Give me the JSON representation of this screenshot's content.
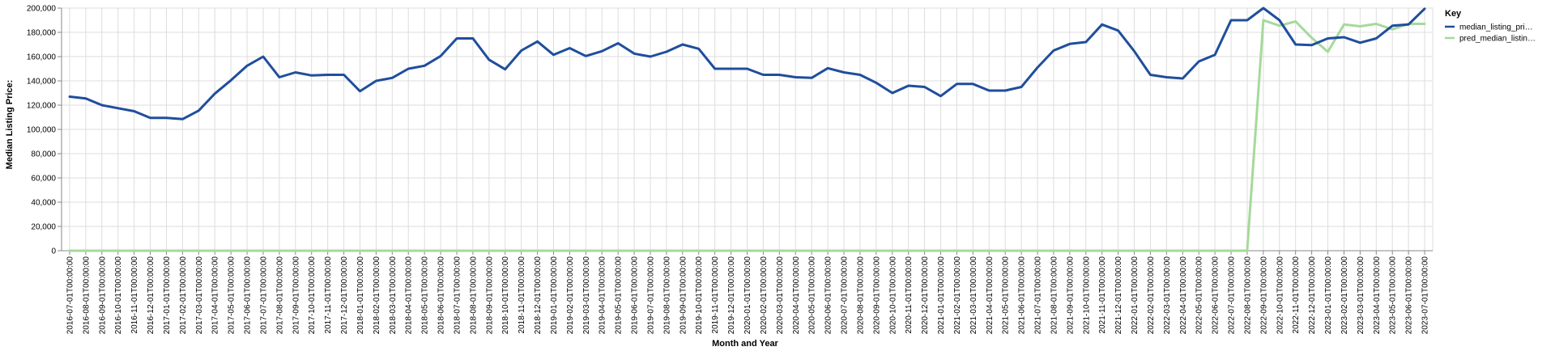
{
  "chart_data": {
    "type": "line",
    "xlabel": "Month and Year",
    "ylabel": "Median Listing Price:",
    "ylim": [
      0,
      200000
    ],
    "yticks": [
      0,
      20000,
      40000,
      60000,
      80000,
      100000,
      120000,
      140000,
      160000,
      180000,
      200000
    ],
    "ytick_labels": [
      "0",
      "20,000",
      "40,000",
      "60,000",
      "80,000",
      "100,000",
      "120,000",
      "140,000",
      "160,000",
      "180,000",
      "200,000"
    ],
    "grid": true,
    "legend": {
      "title": "Key",
      "placement": "top-right"
    },
    "categories": [
      "2016-07-01T00:00:00",
      "2016-08-01T00:00:00",
      "2016-09-01T00:00:00",
      "2016-10-01T00:00:00",
      "2016-11-01T00:00:00",
      "2016-12-01T00:00:00",
      "2017-01-01T00:00:00",
      "2017-02-01T00:00:00",
      "2017-03-01T00:00:00",
      "2017-04-01T00:00:00",
      "2017-05-01T00:00:00",
      "2017-06-01T00:00:00",
      "2017-07-01T00:00:00",
      "2017-08-01T00:00:00",
      "2017-09-01T00:00:00",
      "2017-10-01T00:00:00",
      "2017-11-01T00:00:00",
      "2017-12-01T00:00:00",
      "2018-01-01T00:00:00",
      "2018-02-01T00:00:00",
      "2018-03-01T00:00:00",
      "2018-04-01T00:00:00",
      "2018-05-01T00:00:00",
      "2018-06-01T00:00:00",
      "2018-07-01T00:00:00",
      "2018-08-01T00:00:00",
      "2018-09-01T00:00:00",
      "2018-10-01T00:00:00",
      "2018-11-01T00:00:00",
      "2018-12-01T00:00:00",
      "2019-01-01T00:00:00",
      "2019-02-01T00:00:00",
      "2019-03-01T00:00:00",
      "2019-04-01T00:00:00",
      "2019-05-01T00:00:00",
      "2019-06-01T00:00:00",
      "2019-07-01T00:00:00",
      "2019-08-01T00:00:00",
      "2019-09-01T00:00:00",
      "2019-10-01T00:00:00",
      "2019-11-01T00:00:00",
      "2019-12-01T00:00:00",
      "2020-01-01T00:00:00",
      "2020-02-01T00:00:00",
      "2020-03-01T00:00:00",
      "2020-04-01T00:00:00",
      "2020-05-01T00:00:00",
      "2020-06-01T00:00:00",
      "2020-07-01T00:00:00",
      "2020-08-01T00:00:00",
      "2020-09-01T00:00:00",
      "2020-10-01T00:00:00",
      "2020-11-01T00:00:00",
      "2020-12-01T00:00:00",
      "2021-01-01T00:00:00",
      "2021-02-01T00:00:00",
      "2021-03-01T00:00:00",
      "2021-04-01T00:00:00",
      "2021-05-01T00:00:00",
      "2021-06-01T00:00:00",
      "2021-07-01T00:00:00",
      "2021-08-01T00:00:00",
      "2021-09-01T00:00:00",
      "2021-10-01T00:00:00",
      "2021-11-01T00:00:00",
      "2021-12-01T00:00:00",
      "2022-01-01T00:00:00",
      "2022-02-01T00:00:00",
      "2022-03-01T00:00:00",
      "2022-04-01T00:00:00",
      "2022-05-01T00:00:00",
      "2022-06-01T00:00:00",
      "2022-07-01T00:00:00",
      "2022-08-01T00:00:00",
      "2022-09-01T00:00:00",
      "2022-10-01T00:00:00",
      "2022-11-01T00:00:00",
      "2022-12-01T00:00:00",
      "2023-01-01T00:00:00",
      "2023-02-01T00:00:00",
      "2023-03-01T00:00:00",
      "2023-04-01T00:00:00",
      "2023-05-01T00:00:00",
      "2023-06-01T00:00:00",
      "2023-07-01T00:00:00"
    ],
    "series": [
      {
        "name": "median_listing_pri…",
        "color": "#1f4e9c",
        "values": [
          127000,
          125500,
          120000,
          117500,
          115000,
          109500,
          109500,
          108500,
          115500,
          129500,
          140500,
          152500,
          160000,
          143000,
          147000,
          144500,
          145000,
          145000,
          131500,
          140000,
          142500,
          150000,
          152500,
          160500,
          175000,
          175000,
          157500,
          149500,
          165000,
          172500,
          161500,
          167000,
          160500,
          164500,
          171000,
          162500,
          160000,
          164000,
          170000,
          166500,
          150000,
          150000,
          150000,
          145000,
          145000,
          143000,
          142500,
          150500,
          147000,
          145000,
          138500,
          130000,
          136000,
          135000,
          127500,
          137500,
          137500,
          132000,
          132000,
          135000,
          151000,
          165000,
          170500,
          172000,
          186500,
          181500,
          164500,
          145000,
          143000,
          142000,
          156000,
          161500,
          190000,
          190000,
          200000,
          190000,
          170000,
          169500,
          175000,
          176000,
          171500,
          175000,
          185500,
          186500,
          199500
        ]
      },
      {
        "name": "pred_median_listin…",
        "color": "#a6d99a",
        "values": [
          0,
          0,
          0,
          0,
          0,
          0,
          0,
          0,
          0,
          0,
          0,
          0,
          0,
          0,
          0,
          0,
          0,
          0,
          0,
          0,
          0,
          0,
          0,
          0,
          0,
          0,
          0,
          0,
          0,
          0,
          0,
          0,
          0,
          0,
          0,
          0,
          0,
          0,
          0,
          0,
          0,
          0,
          0,
          0,
          0,
          0,
          0,
          0,
          0,
          0,
          0,
          0,
          0,
          0,
          0,
          0,
          0,
          0,
          0,
          0,
          0,
          0,
          0,
          0,
          0,
          0,
          0,
          0,
          0,
          0,
          0,
          0,
          0,
          0,
          190000,
          185500,
          189000,
          175500,
          164000,
          186500,
          185000,
          187000,
          182500,
          187000,
          187000
        ]
      }
    ]
  }
}
